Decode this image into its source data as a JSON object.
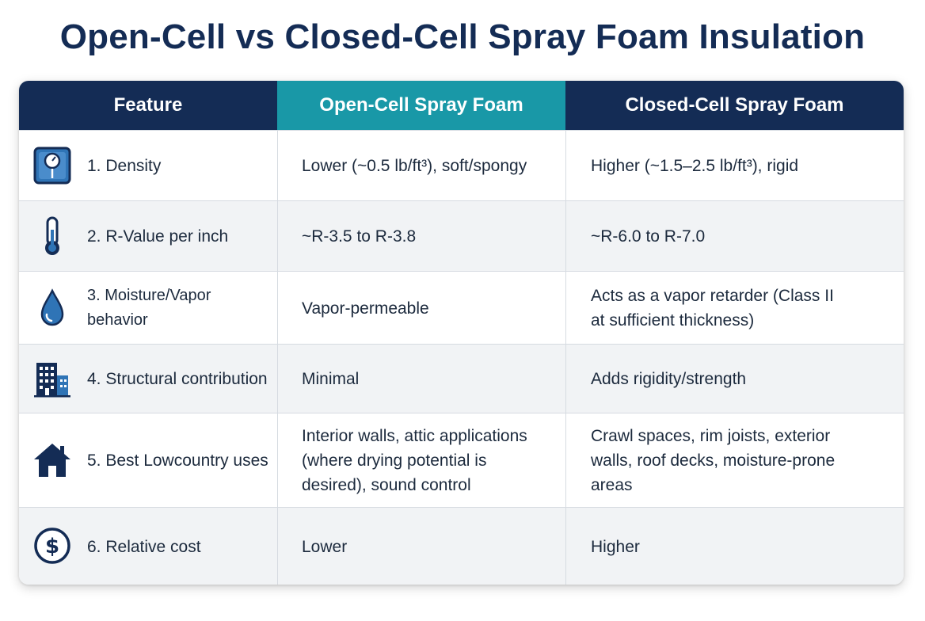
{
  "title": "Open-Cell vs Closed-Cell Spray Foam Insulation",
  "headers": {
    "feature": "Feature",
    "open_cell": "Open-Cell Spray Foam",
    "closed_cell": "Closed-Cell Spray Foam"
  },
  "colors": {
    "navy": "#142c55",
    "teal": "#1998a7",
    "icon_blue": "#2f74b6"
  },
  "rows": [
    {
      "icon": "scale-icon",
      "feature": "1. Density",
      "open_cell": "Lower (~0.5 lb/ft³), soft/spongy",
      "closed_cell": "Higher (~1.5–2.5 lb/ft³), rigid"
    },
    {
      "icon": "thermometer-icon",
      "feature": "2. R-Value per inch",
      "open_cell": "~R-3.5 to R-3.8",
      "closed_cell": "~R-6.0 to R-7.0"
    },
    {
      "icon": "water-drop-icon",
      "feature": "3. Moisture/Vapor behavior",
      "open_cell": "Vapor-permeable",
      "closed_cell": "Acts as a vapor retarder (Class II at sufficient thickness)"
    },
    {
      "icon": "building-icon",
      "feature": "4. Structural contribution",
      "open_cell": "Minimal",
      "closed_cell": "Adds rigidity/strength"
    },
    {
      "icon": "house-icon",
      "feature": "5. Best Lowcountry uses",
      "open_cell": "Interior walls, attic applications (where drying potential is desired), sound control",
      "closed_cell": "Crawl spaces, rim joists, exterior walls, roof decks, moisture-prone areas"
    },
    {
      "icon": "dollar-icon",
      "feature": "6. Relative cost",
      "open_cell": "Lower",
      "closed_cell": "Higher"
    }
  ]
}
